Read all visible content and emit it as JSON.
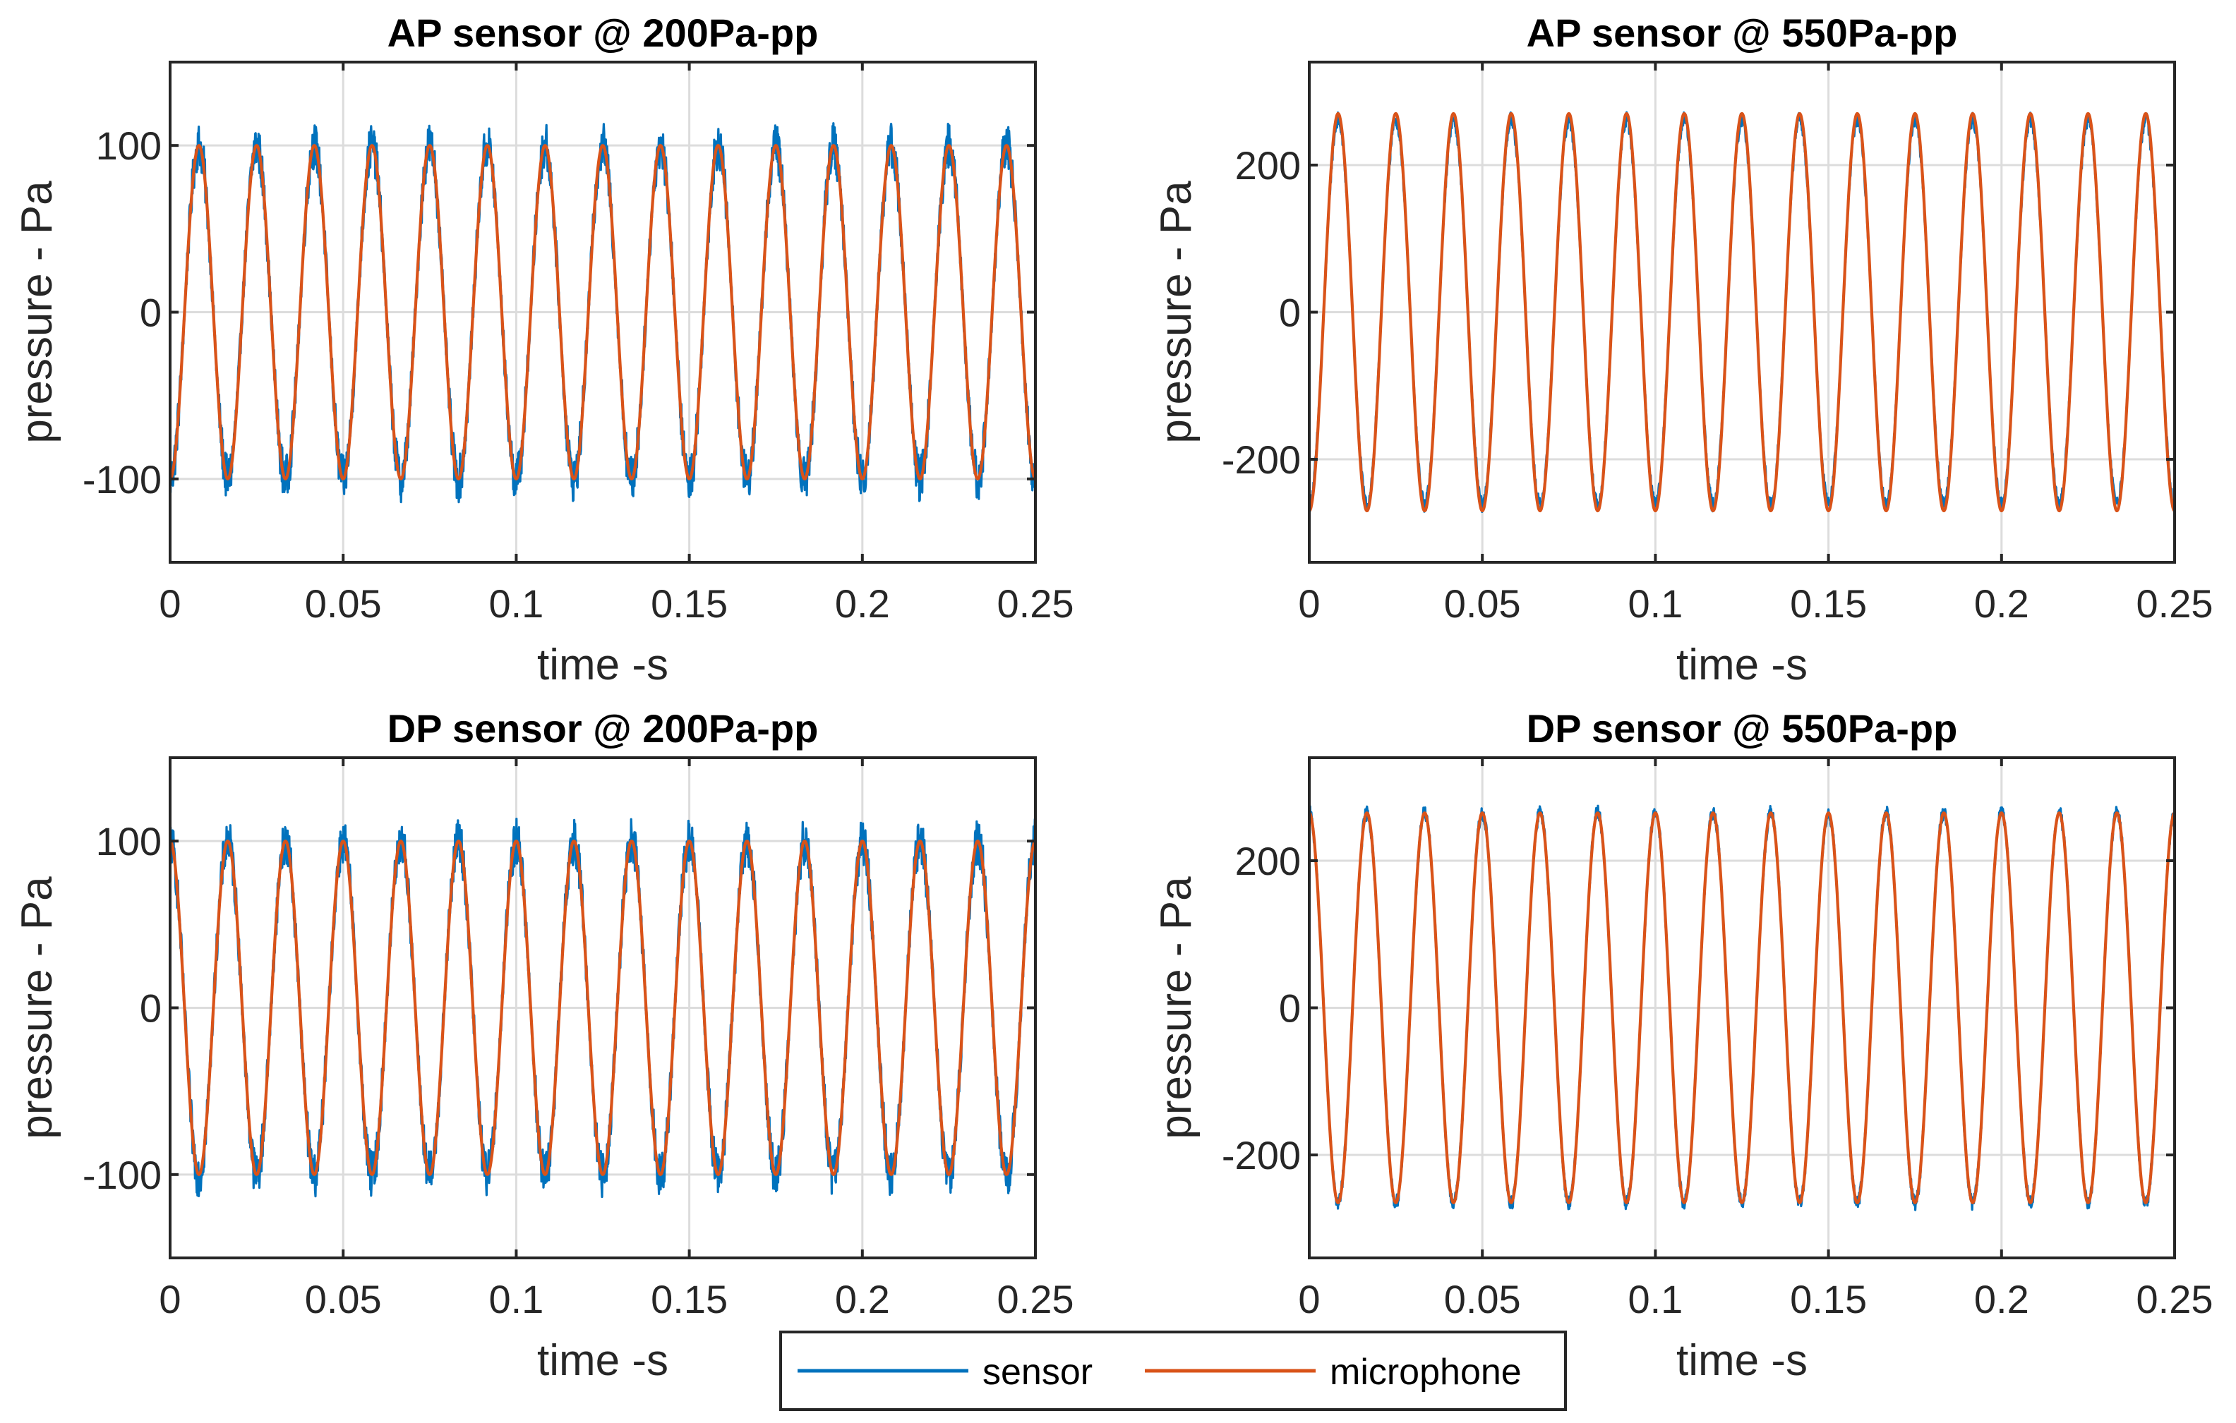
{
  "colors": {
    "sensor": "#0072BD",
    "microphone": "#D95319"
  },
  "legend": {
    "placement": "bottom-center",
    "entries": [
      {
        "label": "sensor",
        "color": "#0072BD"
      },
      {
        "label": "microphone",
        "color": "#D95319"
      }
    ]
  },
  "chart_data": [
    {
      "type": "line",
      "title": "AP sensor @ 200Pa-pp",
      "xlabel": "time -s",
      "ylabel": "pressure - Pa",
      "xlim": [
        0,
        0.25
      ],
      "ylim": [
        -150,
        150
      ],
      "xticks": [
        0,
        0.05,
        0.1,
        0.15,
        0.2,
        0.25
      ],
      "xtick_labels": [
        "0",
        "0.05",
        "0.1",
        "0.15",
        "0.2",
        "0.25"
      ],
      "yticks": [
        -100,
        0,
        100
      ],
      "ytick_labels": [
        "-100",
        "0",
        "100"
      ],
      "grid": true,
      "series": [
        {
          "name": "sensor",
          "kind": "sine",
          "frequency_hz": 60,
          "amplitude": 100,
          "phase_deg": -90,
          "noise_amplitude": 14
        },
        {
          "name": "microphone",
          "kind": "sine",
          "frequency_hz": 60,
          "amplitude": 100,
          "phase_deg": -90,
          "noise_amplitude": 0
        }
      ]
    },
    {
      "type": "line",
      "title": "AP sensor @ 550Pa-pp",
      "xlabel": "time -s",
      "ylabel": "pressure - Pa",
      "xlim": [
        0,
        0.25
      ],
      "ylim": [
        -340,
        340
      ],
      "xticks": [
        0,
        0.05,
        0.1,
        0.15,
        0.2,
        0.25
      ],
      "xtick_labels": [
        "0",
        "0.05",
        "0.1",
        "0.15",
        "0.2",
        "0.25"
      ],
      "yticks": [
        -200,
        0,
        200
      ],
      "ytick_labels": [
        "-200",
        "0",
        "200"
      ],
      "grid": true,
      "series": [
        {
          "name": "sensor",
          "kind": "sine",
          "frequency_hz": 60,
          "amplitude": 262,
          "phase_deg": -90,
          "noise_amplitude": 10
        },
        {
          "name": "microphone",
          "kind": "sine",
          "frequency_hz": 60,
          "amplitude": 270,
          "phase_deg": -90,
          "noise_amplitude": 0
        }
      ]
    },
    {
      "type": "line",
      "title": "DP sensor @ 200Pa-pp",
      "xlabel": "time -s",
      "ylabel": "pressure - Pa",
      "xlim": [
        0,
        0.25
      ],
      "ylim": [
        -150,
        150
      ],
      "xticks": [
        0,
        0.05,
        0.1,
        0.15,
        0.2,
        0.25
      ],
      "xtick_labels": [
        "0",
        "0.05",
        "0.1",
        "0.15",
        "0.2",
        "0.25"
      ],
      "yticks": [
        -100,
        0,
        100
      ],
      "ytick_labels": [
        "-100",
        "0",
        "100"
      ],
      "grid": true,
      "series": [
        {
          "name": "sensor",
          "kind": "sine",
          "frequency_hz": 60,
          "amplitude": 100,
          "phase_deg": 90,
          "noise_amplitude": 14
        },
        {
          "name": "microphone",
          "kind": "sine",
          "frequency_hz": 60,
          "amplitude": 100,
          "phase_deg": 90,
          "noise_amplitude": 0
        }
      ]
    },
    {
      "type": "line",
      "title": "DP sensor @ 550Pa-pp",
      "xlabel": "time -s",
      "ylabel": "pressure - Pa",
      "xlim": [
        0,
        0.25
      ],
      "ylim": [
        -340,
        340
      ],
      "xticks": [
        0,
        0.05,
        0.1,
        0.15,
        0.2,
        0.25
      ],
      "xtick_labels": [
        "0",
        "0.05",
        "0.1",
        "0.15",
        "0.2",
        "0.25"
      ],
      "yticks": [
        -200,
        0,
        200
      ],
      "ytick_labels": [
        "-200",
        "0",
        "200"
      ],
      "grid": true,
      "series": [
        {
          "name": "sensor",
          "kind": "sine",
          "frequency_hz": 60,
          "amplitude": 265,
          "phase_deg": 90,
          "noise_amplitude": 10
        },
        {
          "name": "microphone",
          "kind": "sine",
          "frequency_hz": 60,
          "amplitude": 265,
          "phase_deg": 90,
          "noise_amplitude": 0
        }
      ]
    }
  ]
}
